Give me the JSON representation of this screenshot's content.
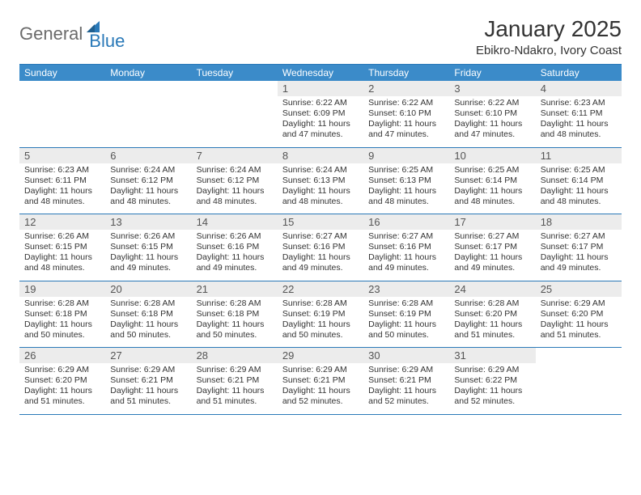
{
  "brand": {
    "text1": "General",
    "text2": "Blue",
    "color1": "#6b6b6b",
    "color2": "#2a79b8"
  },
  "title": "January 2025",
  "location": "Ebikro-Ndakro, Ivory Coast",
  "dayNames": [
    "Sunday",
    "Monday",
    "Tuesday",
    "Wednesday",
    "Thursday",
    "Friday",
    "Saturday"
  ],
  "colors": {
    "headerBg": "#3b8bc9",
    "headerText": "#ffffff",
    "dateBg": "#ececec",
    "dateText": "#555555",
    "bodyText": "#333333",
    "ruleColor": "#2a79b8",
    "pageBg": "#ffffff"
  },
  "weeks": [
    [
      {
        "n": "",
        "lines": []
      },
      {
        "n": "",
        "lines": []
      },
      {
        "n": "",
        "lines": []
      },
      {
        "n": "1",
        "lines": [
          "Sunrise: 6:22 AM",
          "Sunset: 6:09 PM",
          "Daylight: 11 hours and 47 minutes."
        ]
      },
      {
        "n": "2",
        "lines": [
          "Sunrise: 6:22 AM",
          "Sunset: 6:10 PM",
          "Daylight: 11 hours and 47 minutes."
        ]
      },
      {
        "n": "3",
        "lines": [
          "Sunrise: 6:22 AM",
          "Sunset: 6:10 PM",
          "Daylight: 11 hours and 47 minutes."
        ]
      },
      {
        "n": "4",
        "lines": [
          "Sunrise: 6:23 AM",
          "Sunset: 6:11 PM",
          "Daylight: 11 hours and 48 minutes."
        ]
      }
    ],
    [
      {
        "n": "5",
        "lines": [
          "Sunrise: 6:23 AM",
          "Sunset: 6:11 PM",
          "Daylight: 11 hours and 48 minutes."
        ]
      },
      {
        "n": "6",
        "lines": [
          "Sunrise: 6:24 AM",
          "Sunset: 6:12 PM",
          "Daylight: 11 hours and 48 minutes."
        ]
      },
      {
        "n": "7",
        "lines": [
          "Sunrise: 6:24 AM",
          "Sunset: 6:12 PM",
          "Daylight: 11 hours and 48 minutes."
        ]
      },
      {
        "n": "8",
        "lines": [
          "Sunrise: 6:24 AM",
          "Sunset: 6:13 PM",
          "Daylight: 11 hours and 48 minutes."
        ]
      },
      {
        "n": "9",
        "lines": [
          "Sunrise: 6:25 AM",
          "Sunset: 6:13 PM",
          "Daylight: 11 hours and 48 minutes."
        ]
      },
      {
        "n": "10",
        "lines": [
          "Sunrise: 6:25 AM",
          "Sunset: 6:14 PM",
          "Daylight: 11 hours and 48 minutes."
        ]
      },
      {
        "n": "11",
        "lines": [
          "Sunrise: 6:25 AM",
          "Sunset: 6:14 PM",
          "Daylight: 11 hours and 48 minutes."
        ]
      }
    ],
    [
      {
        "n": "12",
        "lines": [
          "Sunrise: 6:26 AM",
          "Sunset: 6:15 PM",
          "Daylight: 11 hours and 48 minutes."
        ]
      },
      {
        "n": "13",
        "lines": [
          "Sunrise: 6:26 AM",
          "Sunset: 6:15 PM",
          "Daylight: 11 hours and 49 minutes."
        ]
      },
      {
        "n": "14",
        "lines": [
          "Sunrise: 6:26 AM",
          "Sunset: 6:16 PM",
          "Daylight: 11 hours and 49 minutes."
        ]
      },
      {
        "n": "15",
        "lines": [
          "Sunrise: 6:27 AM",
          "Sunset: 6:16 PM",
          "Daylight: 11 hours and 49 minutes."
        ]
      },
      {
        "n": "16",
        "lines": [
          "Sunrise: 6:27 AM",
          "Sunset: 6:16 PM",
          "Daylight: 11 hours and 49 minutes."
        ]
      },
      {
        "n": "17",
        "lines": [
          "Sunrise: 6:27 AM",
          "Sunset: 6:17 PM",
          "Daylight: 11 hours and 49 minutes."
        ]
      },
      {
        "n": "18",
        "lines": [
          "Sunrise: 6:27 AM",
          "Sunset: 6:17 PM",
          "Daylight: 11 hours and 49 minutes."
        ]
      }
    ],
    [
      {
        "n": "19",
        "lines": [
          "Sunrise: 6:28 AM",
          "Sunset: 6:18 PM",
          "Daylight: 11 hours and 50 minutes."
        ]
      },
      {
        "n": "20",
        "lines": [
          "Sunrise: 6:28 AM",
          "Sunset: 6:18 PM",
          "Daylight: 11 hours and 50 minutes."
        ]
      },
      {
        "n": "21",
        "lines": [
          "Sunrise: 6:28 AM",
          "Sunset: 6:18 PM",
          "Daylight: 11 hours and 50 minutes."
        ]
      },
      {
        "n": "22",
        "lines": [
          "Sunrise: 6:28 AM",
          "Sunset: 6:19 PM",
          "Daylight: 11 hours and 50 minutes."
        ]
      },
      {
        "n": "23",
        "lines": [
          "Sunrise: 6:28 AM",
          "Sunset: 6:19 PM",
          "Daylight: 11 hours and 50 minutes."
        ]
      },
      {
        "n": "24",
        "lines": [
          "Sunrise: 6:28 AM",
          "Sunset: 6:20 PM",
          "Daylight: 11 hours and 51 minutes."
        ]
      },
      {
        "n": "25",
        "lines": [
          "Sunrise: 6:29 AM",
          "Sunset: 6:20 PM",
          "Daylight: 11 hours and 51 minutes."
        ]
      }
    ],
    [
      {
        "n": "26",
        "lines": [
          "Sunrise: 6:29 AM",
          "Sunset: 6:20 PM",
          "Daylight: 11 hours and 51 minutes."
        ]
      },
      {
        "n": "27",
        "lines": [
          "Sunrise: 6:29 AM",
          "Sunset: 6:21 PM",
          "Daylight: 11 hours and 51 minutes."
        ]
      },
      {
        "n": "28",
        "lines": [
          "Sunrise: 6:29 AM",
          "Sunset: 6:21 PM",
          "Daylight: 11 hours and 51 minutes."
        ]
      },
      {
        "n": "29",
        "lines": [
          "Sunrise: 6:29 AM",
          "Sunset: 6:21 PM",
          "Daylight: 11 hours and 52 minutes."
        ]
      },
      {
        "n": "30",
        "lines": [
          "Sunrise: 6:29 AM",
          "Sunset: 6:21 PM",
          "Daylight: 11 hours and 52 minutes."
        ]
      },
      {
        "n": "31",
        "lines": [
          "Sunrise: 6:29 AM",
          "Sunset: 6:22 PM",
          "Daylight: 11 hours and 52 minutes."
        ]
      },
      {
        "n": "",
        "lines": []
      }
    ]
  ]
}
